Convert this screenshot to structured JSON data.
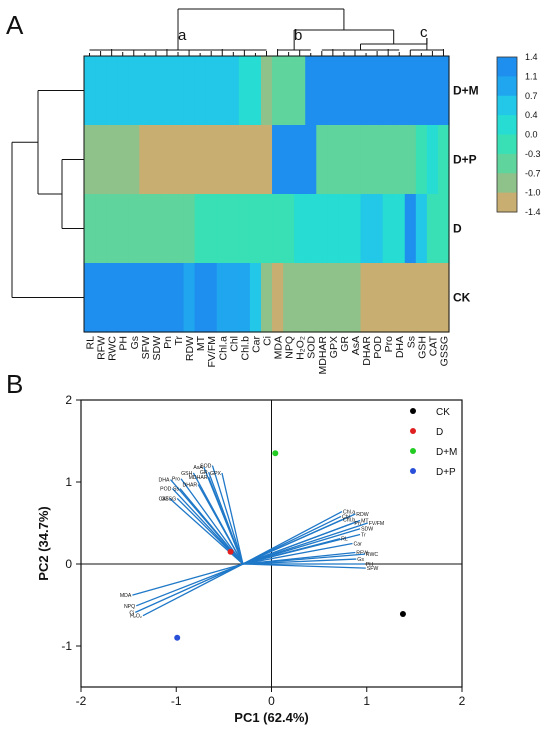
{
  "chart_data": [
    {
      "type": "heatmap",
      "panel_label": "A",
      "rows": [
        "D+M",
        "D+P",
        "D",
        "CK"
      ],
      "columns": [
        "RL",
        "RFW",
        "RWC",
        "PH",
        "Gs",
        "SFW",
        "SDW",
        "Pn",
        "Tr",
        "RDW",
        "MT",
        "FV/FM",
        "Chl.a",
        "Chl",
        "Chl.b",
        "Car",
        "Ci",
        "MDA",
        "NPQ",
        "H₂O₂",
        "SOD",
        "MDHAR",
        "GPX",
        "GR",
        "AsA",
        "DHAR",
        "POD",
        "Pro",
        "DHA",
        "Ss",
        "GSH",
        "CAT",
        "GSSG"
      ],
      "cluster_labels": [
        "a",
        "b",
        "c"
      ],
      "color_scale": {
        "ticks": [
          "1.4",
          "1.1",
          "0.7",
          "0.4",
          "0.0",
          "-0.3",
          "-0.7",
          "-1.0",
          "-1.4"
        ],
        "colors": [
          "#1f8fef",
          "#1fa6ee",
          "#23c7e8",
          "#27dcd2",
          "#39e0b6",
          "#5fd49c",
          "#8ec28a",
          "#c9ae72"
        ]
      },
      "values": [
        [
          0.5,
          0.5,
          0.5,
          0.5,
          0.5,
          0.5,
          0.5,
          0.5,
          0.5,
          0.5,
          0.5,
          0.5,
          0.5,
          0.5,
          0.3,
          0.3,
          -0.8,
          -0.5,
          -0.5,
          -0.5,
          1.3,
          1.3,
          1.3,
          1.3,
          1.3,
          1.3,
          1.3,
          1.3,
          1.3,
          1.2,
          1.3,
          1.3,
          1.3
        ],
        [
          -0.75,
          -0.75,
          -0.75,
          -0.75,
          -0.75,
          -1.3,
          -1.3,
          -1.3,
          -1.3,
          -1.3,
          -1.3,
          -1.3,
          -1.3,
          -1.3,
          -1.3,
          -1.3,
          -1.3,
          1.3,
          1.3,
          1.3,
          1.3,
          -0.5,
          -0.5,
          -0.5,
          -0.5,
          -0.5,
          -0.5,
          -0.5,
          -0.5,
          -0.5,
          -0.15,
          0.2,
          0.0
        ],
        [
          -0.4,
          -0.4,
          -0.4,
          -0.4,
          -0.4,
          -0.4,
          -0.4,
          -0.4,
          -0.4,
          -0.4,
          -0.1,
          -0.1,
          -0.1,
          -0.1,
          -0.1,
          -0.1,
          -0.1,
          -0.1,
          -0.1,
          0.2,
          0.2,
          0.2,
          0.2,
          0.2,
          0.2,
          0.7,
          0.7,
          0.2,
          0.2,
          1.1,
          0.6,
          -0.15,
          -0.15
        ],
        [
          1.3,
          1.3,
          1.3,
          1.3,
          1.3,
          1.3,
          1.3,
          1.3,
          1.3,
          1.0,
          1.3,
          1.3,
          0.85,
          0.85,
          0.85,
          0.6,
          -0.8,
          -1.3,
          -0.8,
          -0.8,
          -0.8,
          -0.8,
          -0.8,
          -0.8,
          -0.8,
          -1.3,
          -1.3,
          -1.3,
          -1.3,
          -1.3,
          -1.3,
          -1.3,
          -1.3
        ]
      ]
    },
    {
      "type": "scatter",
      "panel_label": "B",
      "xlabel": "PC1 (62.4%)",
      "ylabel": "PC2 (34.7%)",
      "xlim": [
        -2,
        2
      ],
      "ylim": [
        -1.5,
        2
      ],
      "x_ticks": [
        "-2",
        "-1",
        "0",
        "1",
        "2"
      ],
      "y_ticks": [
        "-1",
        "0",
        "1",
        "2"
      ],
      "legend_position": "top-right",
      "series": [
        {
          "name": "CK",
          "color": "#000000",
          "points": [
            [
              1.38,
              -0.61
            ]
          ]
        },
        {
          "name": "D",
          "color": "#e02020",
          "points": [
            [
              -0.43,
              0.15
            ]
          ]
        },
        {
          "name": "D+M",
          "color": "#22cc22",
          "points": [
            [
              0.04,
              1.35
            ]
          ]
        },
        {
          "name": "D+P",
          "color": "#2a4fd8",
          "points": [
            [
              -0.99,
              -0.9
            ]
          ]
        }
      ],
      "loadings": [
        {
          "label": "Chl.a",
          "x": 0.74,
          "y": 0.64
        },
        {
          "label": "RDW",
          "x": 0.88,
          "y": 0.61
        },
        {
          "label": "Chl",
          "x": 0.73,
          "y": 0.58
        },
        {
          "label": "Chl.b",
          "x": 0.74,
          "y": 0.54
        },
        {
          "label": "MT",
          "x": 0.93,
          "y": 0.53
        },
        {
          "label": "FV/FM",
          "x": 1.01,
          "y": 0.5
        },
        {
          "label": "Pn",
          "x": 0.86,
          "y": 0.5
        },
        {
          "label": "SDW",
          "x": 0.93,
          "y": 0.43
        },
        {
          "label": "Tr",
          "x": 0.93,
          "y": 0.36
        },
        {
          "label": "RL",
          "x": 0.72,
          "y": 0.31
        },
        {
          "label": "Car",
          "x": 0.85,
          "y": 0.25
        },
        {
          "label": "RFW",
          "x": 0.88,
          "y": 0.14
        },
        {
          "label": "RWC",
          "x": 0.98,
          "y": 0.12
        },
        {
          "label": "Gs",
          "x": 0.89,
          "y": 0.06
        },
        {
          "label": "PH",
          "x": 0.98,
          "y": 0.0
        },
        {
          "label": "SFW",
          "x": 0.99,
          "y": -0.05
        },
        {
          "label": "AsA",
          "x": -0.71,
          "y": 1.18
        },
        {
          "label": "SOD",
          "x": -0.62,
          "y": 1.2
        },
        {
          "label": "GSH",
          "x": -0.82,
          "y": 1.11
        },
        {
          "label": "GR",
          "x": -0.66,
          "y": 1.12
        },
        {
          "label": "GPX",
          "x": -0.52,
          "y": 1.11
        },
        {
          "label": "MDHAR",
          "x": -0.66,
          "y": 1.06
        },
        {
          "label": "DHA",
          "x": -1.06,
          "y": 1.03
        },
        {
          "label": "Pro",
          "x": -0.95,
          "y": 1.04
        },
        {
          "label": "DHAR",
          "x": -0.77,
          "y": 0.97
        },
        {
          "label": "POD",
          "x": -1.04,
          "y": 0.92
        },
        {
          "label": "Ss",
          "x": -0.96,
          "y": 0.92
        },
        {
          "label": "CAT",
          "x": -1.07,
          "y": 0.8
        },
        {
          "label": "GSSG",
          "x": -0.99,
          "y": 0.8
        },
        {
          "label": "MDA",
          "x": -1.46,
          "y": -0.38
        },
        {
          "label": "NPQ",
          "x": -1.42,
          "y": -0.51
        },
        {
          "label": "Ci",
          "x": -1.43,
          "y": -0.59
        },
        {
          "label": "H₂O₂",
          "x": -1.35,
          "y": -0.63
        }
      ]
    }
  ]
}
